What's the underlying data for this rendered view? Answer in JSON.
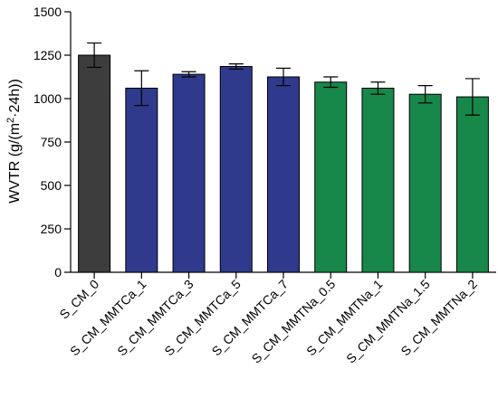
{
  "chart_data": {
    "type": "bar",
    "ylabel": "WVTR (g/(m²·24h))",
    "ylabel_parts": {
      "before": "WVTR (g/(m",
      "sup": "2",
      "after": "·24h))"
    },
    "ylim": [
      0,
      1500
    ],
    "yticks": [
      0,
      250,
      500,
      750,
      1000,
      1250,
      1500
    ],
    "grid": false,
    "categories": [
      "S_CM_0",
      "S_CM_MMTCa_1",
      "S_CM_MMTCa_3",
      "S_CM_MMTCa_5",
      "S_CM_MMTCa_7",
      "S_CM_MMTNa_0.5",
      "S_CM_MMTNa_1",
      "S_CM_MMTNa_1.5",
      "S_CM_MMTNa_2"
    ],
    "values": [
      1250,
      1060,
      1140,
      1185,
      1125,
      1095,
      1060,
      1025,
      1010
    ],
    "errors": [
      70,
      100,
      15,
      15,
      50,
      30,
      35,
      50,
      105
    ],
    "colors": [
      "#3d3d3d",
      "#2f3a8c",
      "#2f3a8c",
      "#2f3a8c",
      "#2f3a8c",
      "#17874a",
      "#17874a",
      "#17874a",
      "#17874a"
    ]
  }
}
